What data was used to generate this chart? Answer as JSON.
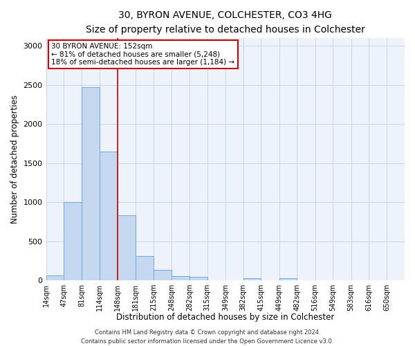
{
  "title_line1": "30, BYRON AVENUE, COLCHESTER, CO3 4HG",
  "title_line2": "Size of property relative to detached houses in Colchester",
  "xlabel": "Distribution of detached houses by size in Colchester",
  "ylabel": "Number of detached properties",
  "annotation_line1": "30 BYRON AVENUE: 152sqm",
  "annotation_line2": "← 81% of detached houses are smaller (5,248)",
  "annotation_line3": "18% of semi-detached houses are larger (1,184) →",
  "footer_line1": "Contains HM Land Registry data © Crown copyright and database right 2024.",
  "footer_line2": "Contains public sector information licensed under the Open Government Licence v3.0.",
  "bin_edges": [
    14,
    47,
    81,
    114,
    148,
    181,
    215,
    248,
    282,
    315,
    349,
    382,
    415,
    449,
    482,
    516,
    549,
    583,
    616,
    650,
    683
  ],
  "bin_counts": [
    60,
    1000,
    2470,
    1650,
    830,
    310,
    130,
    55,
    45,
    0,
    0,
    30,
    0,
    25,
    0,
    0,
    0,
    0,
    0,
    0
  ],
  "bar_color": "#c5d8ef",
  "bar_edge_color": "#6aace0",
  "vline_x": 148,
  "vline_color": "#cc0000",
  "annotation_box_color": "#cc0000",
  "bg_color": "#eef3fb",
  "grid_color": "#c8d5e8",
  "ylim": [
    0,
    3100
  ],
  "yticks": [
    0,
    500,
    1000,
    1500,
    2000,
    2500,
    3000
  ],
  "title_fontsize": 10,
  "subtitle_fontsize": 9,
  "tick_label_fontsize": 7,
  "ylabel_fontsize": 8.5,
  "xlabel_fontsize": 8.5,
  "annotation_fontsize": 7.5,
  "footer_fontsize": 6
}
